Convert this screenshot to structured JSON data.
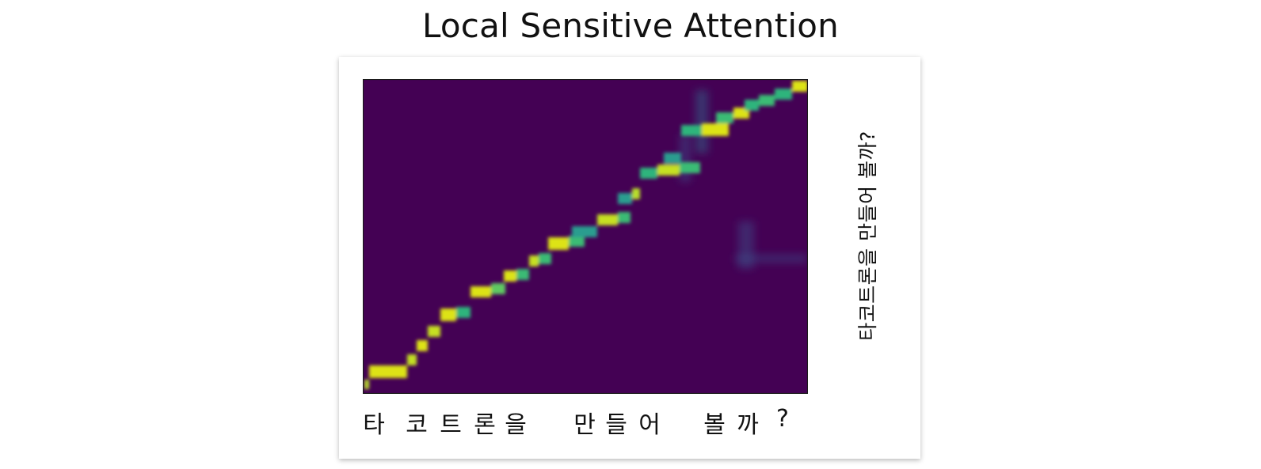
{
  "title": "Local Sensitive Attention",
  "x_labels": [
    "타",
    "코",
    "트",
    "론",
    "을",
    "만",
    "들",
    "어",
    "볼",
    "까",
    "?"
  ],
  "wave_label": "타코트론을 만들어 볼까?",
  "colors": {
    "background": "#440154",
    "highlight": "#dde318",
    "mid": "#21918c",
    "waveform_top": "#e040a0",
    "waveform_mid": "#9020e0",
    "waveform_bottom": "#20a0e0"
  }
}
